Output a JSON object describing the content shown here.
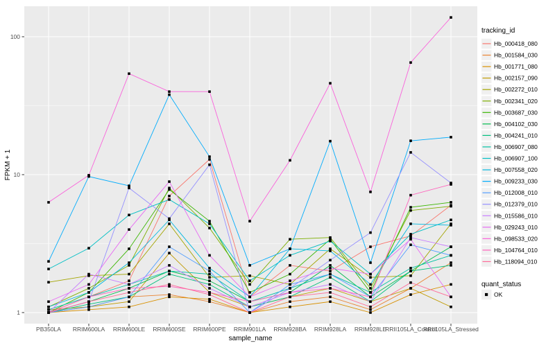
{
  "chart_data": {
    "type": "line",
    "xlabel": "sample_name",
    "ylabel": "FPKM + 1",
    "y_scale": "log10",
    "y_ticks": [
      "1",
      "10",
      "100"
    ],
    "y_tick_values": [
      1,
      10,
      100
    ],
    "ylim": [
      1,
      160
    ],
    "grid": "on",
    "legend_position": "right",
    "categories": [
      "PB350LA",
      "RRIM600LA",
      "RRIM600LE",
      "RRIM600SE",
      "RRIM600PE",
      "RRIM901LA",
      "RRIM928BA",
      "RRIM928LA",
      "RRIM928LE",
      "RRII105LA_Control",
      "RRII105LA_Stressed"
    ],
    "series": [
      {
        "name": "Hb_000418_080",
        "color": "#F8766D",
        "values": [
          1.0,
          1.3,
          1.7,
          7.0,
          12.9,
          1.3,
          2.2,
          2.0,
          3.0,
          3.6,
          6.0
        ]
      },
      {
        "name": "Hb_001584_030",
        "color": "#EA8331",
        "values": [
          1.0,
          1.1,
          1.3,
          1.35,
          1.2,
          1.0,
          1.2,
          1.3,
          1.05,
          1.5,
          2.3
        ]
      },
      {
        "name": "Hb_001771_080",
        "color": "#D89000",
        "values": [
          1.0,
          1.05,
          1.1,
          1.3,
          1.25,
          1.0,
          1.1,
          1.2,
          1.0,
          1.35,
          1.6
        ]
      },
      {
        "name": "Hb_002157_090",
        "color": "#C09B00",
        "values": [
          1.05,
          1.1,
          1.2,
          2.7,
          1.4,
          1.1,
          1.3,
          1.5,
          1.2,
          1.5,
          1.1
        ]
      },
      {
        "name": "Hb_002272_010",
        "color": "#A3A500",
        "values": [
          1.66,
          1.85,
          1.9,
          4.4,
          1.8,
          1.85,
          1.6,
          2.9,
          1.8,
          1.85,
          4.4
        ]
      },
      {
        "name": "Hb_002341_020",
        "color": "#7CAE00",
        "values": [
          1.1,
          1.5,
          2.2,
          8.0,
          4.1,
          1.6,
          3.4,
          3.5,
          1.5,
          5.5,
          5.9
        ]
      },
      {
        "name": "Hb_003687_030",
        "color": "#39B600",
        "values": [
          1.0,
          1.4,
          2.9,
          7.8,
          4.6,
          1.4,
          1.9,
          3.4,
          1.4,
          5.8,
          6.3
        ]
      },
      {
        "name": "Hb_004102_030",
        "color": "#00BB4E",
        "values": [
          1.0,
          1.2,
          1.5,
          2.0,
          1.7,
          1.2,
          1.4,
          2.2,
          1.3,
          2.0,
          3.0
        ]
      },
      {
        "name": "Hb_004241_010",
        "color": "#00BF7D",
        "values": [
          1.0,
          1.15,
          1.3,
          1.9,
          1.6,
          1.1,
          1.3,
          1.8,
          1.2,
          2.0,
          2.2
        ]
      },
      {
        "name": "Hb_006907_080",
        "color": "#00C1A3",
        "values": [
          1.05,
          1.3,
          1.6,
          2.0,
          1.9,
          1.2,
          1.5,
          1.9,
          1.4,
          2.1,
          2.6
        ]
      },
      {
        "name": "Hb_006907_100",
        "color": "#00BFC4",
        "values": [
          2.07,
          2.93,
          5.1,
          6.6,
          4.4,
          1.7,
          2.6,
          3.3,
          1.9,
          3.7,
          4.7
        ]
      },
      {
        "name": "Hb_007558_020",
        "color": "#00B8E0",
        "values": [
          1.1,
          1.4,
          2.3,
          4.7,
          2.1,
          1.3,
          2.9,
          2.8,
          1.6,
          4.4,
          4.3
        ]
      },
      {
        "name": "Hb_009233_030",
        "color": "#00ACFC",
        "values": [
          2.35,
          9.7,
          8.3,
          38.0,
          13.5,
          2.2,
          2.9,
          17.5,
          2.3,
          17.6,
          18.7
        ]
      },
      {
        "name": "Hb_012008_010",
        "color": "#529EFF",
        "values": [
          1.0,
          1.1,
          1.3,
          3.0,
          2.0,
          1.0,
          1.6,
          1.9,
          1.3,
          3.1,
          2.6
        ]
      },
      {
        "name": "Hb_012379_010",
        "color": "#9590FF",
        "values": [
          1.0,
          1.2,
          8.0,
          4.8,
          11.8,
          1.0,
          1.5,
          2.4,
          3.8,
          14.5,
          8.7
        ]
      },
      {
        "name": "Hb_015586_010",
        "color": "#C77CFF",
        "values": [
          1.0,
          1.9,
          1.6,
          2.2,
          1.5,
          1.1,
          1.4,
          1.6,
          1.2,
          3.5,
          3.0
        ]
      },
      {
        "name": "Hb_029243_010",
        "color": "#E76BF3",
        "values": [
          1.2,
          1.6,
          4.0,
          8.9,
          2.6,
          1.3,
          1.7,
          2.1,
          1.9,
          3.4,
          1.3
        ]
      },
      {
        "name": "Hb_098533_020",
        "color": "#FA62DB",
        "values": [
          6.3,
          9.9,
          54.0,
          40.0,
          40.0,
          4.6,
          12.7,
          46.0,
          7.5,
          65.0,
          138.0
        ]
      },
      {
        "name": "Hb_104764_010",
        "color": "#FF62BC",
        "values": [
          1.0,
          1.3,
          1.5,
          1.55,
          1.4,
          1.2,
          1.4,
          1.5,
          1.3,
          7.1,
          8.5
        ]
      },
      {
        "name": "Hb_118094_010",
        "color": "#FF6A98",
        "values": [
          1.0,
          1.2,
          1.4,
          1.6,
          1.35,
          1.0,
          1.3,
          1.4,
          1.1,
          1.65,
          1.3
        ]
      }
    ],
    "legend": {
      "color_title": "tracking_id",
      "shape_title": "quant_status",
      "shape_label": "OK"
    }
  },
  "style": {
    "panel_bg": "#EBEBEB",
    "grid_color": "#FFFFFF",
    "axis_text_color": "#4D4D4D",
    "title_color": "#000000",
    "point_color": "#000000",
    "legend_key_bg": "#F0F0F0"
  }
}
